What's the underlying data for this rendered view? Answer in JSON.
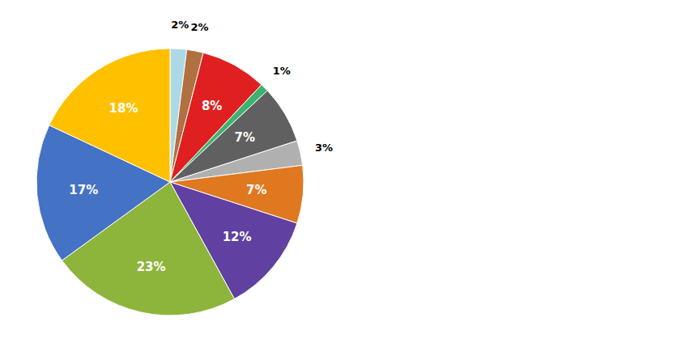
{
  "chart_data": {
    "type": "pie",
    "values": [
      2,
      2,
      8,
      1,
      7,
      3,
      7,
      12,
      23,
      17,
      18
    ],
    "value_labels": [
      "2%",
      "2%",
      "8%",
      "1%",
      "7%",
      "3%",
      "7%",
      "12%",
      "23%",
      "17%",
      "18%"
    ],
    "colors": [
      "#add8e6",
      "#b07040",
      "#e02020",
      "#3cb371",
      "#606060",
      "#b0b0b0",
      "#e07820",
      "#6040a0",
      "#8db53b",
      "#4472c4",
      "#ffc000"
    ],
    "data_labels": true
  }
}
